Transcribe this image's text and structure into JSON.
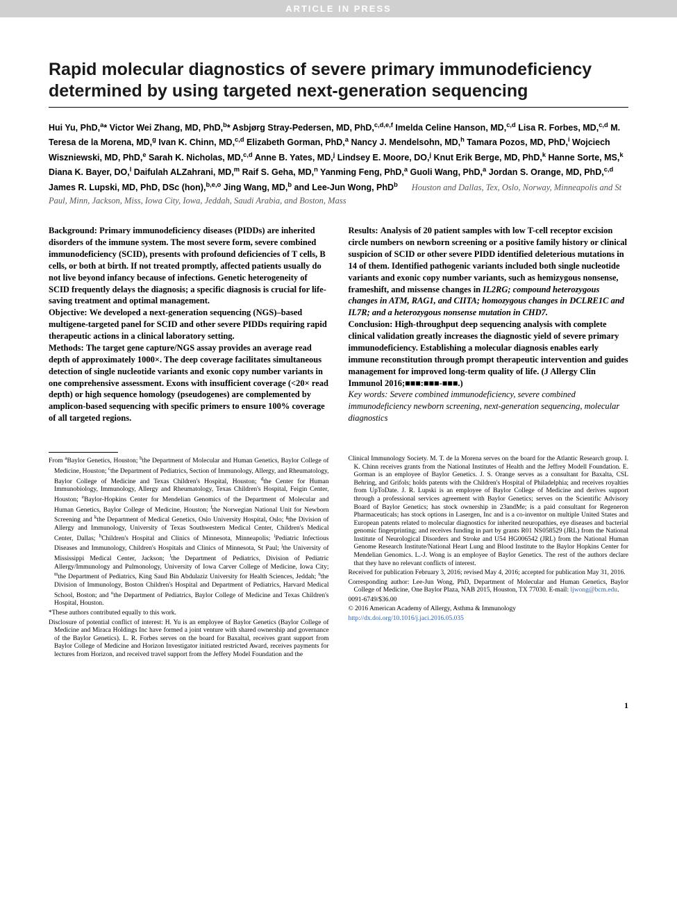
{
  "header_banner": "ARTICLE IN PRESS",
  "title": "Rapid molecular diagnostics of severe primary immunodeficiency determined by using targeted next-generation sequencing",
  "authors_html": "Hui Yu, PhD,<sup>a</sup>* Victor Wei Zhang, MD, PhD,<sup>b</sup>* Asbjørg Stray-Pedersen, MD, PhD,<sup>c,d,e,f</sup> Imelda Celine Hanson, MD,<sup>c,d</sup> Lisa R. Forbes, MD,<sup>c,d</sup> M. Teresa de la Morena, MD,<sup>g</sup> Ivan K. Chinn, MD,<sup>c,d</sup> Elizabeth Gorman, PhD,<sup>a</sup> Nancy J. Mendelsohn, MD,<sup>h</sup> Tamara Pozos, MD, PhD,<sup>i</sup> Wojciech Wiszniewski, MD, PhD,<sup>e</sup> Sarah K. Nicholas, MD,<sup>c,d</sup> Anne B. Yates, MD,<sup>j</sup> Lindsey E. Moore, DO,<sup>j</sup> Knut Erik Berge, MD, PhD,<sup>k</sup> Hanne Sorte, MS,<sup>k</sup> Diana K. Bayer, DO,<sup>l</sup> Daifulah ALZahrani, MD,<sup>m</sup> Raif S. Geha, MD,<sup>n</sup> Yanming Feng, PhD,<sup>a</sup> Guoli Wang, PhD,<sup>a</sup> Jordan S. Orange, MD, PhD,<sup>c,d</sup> James R. Lupski, MD, PhD, DSc (hon),<sup>b,e,o</sup> Jing Wang, MD,<sup>b</sup> and Lee-Jun Wong, PhD<sup>b</sup>",
  "affil_cities": "Houston and Dallas, Tex, Oslo, Norway, Minneapolis and St Paul, Minn, Jackson, Miss, Iowa City, Iowa, Jeddah, Saudi Arabia, and Boston, Mass",
  "abstract": {
    "background_label": "Background:",
    "background": "Primary immunodeficiency diseases (PIDDs) are inherited disorders of the immune system. The most severe form, severe combined immunodeficiency (SCID), presents with profound deficiencies of T cells, B cells, or both at birth. If not treated promptly, affected patients usually do not live beyond infancy because of infections. Genetic heterogeneity of SCID frequently delays the diagnosis; a specific diagnosis is crucial for life-saving treatment and optimal management.",
    "objective_label": "Objective:",
    "objective": "We developed a next-generation sequencing (NGS)–based multigene-targeted panel for SCID and other severe PIDDs requiring rapid therapeutic actions in a clinical laboratory setting.",
    "methods_label": "Methods:",
    "methods": "The target gene capture/NGS assay provides an average read depth of approximately 1000×. The deep coverage facilitates simultaneous detection of single nucleotide variants and exonic copy number variants in one comprehensive assessment. Exons with insufficient coverage (<20× read depth) or high sequence homology (pseudogenes) are complemented by amplicon-based sequencing with specific primers to ensure 100% coverage of all targeted regions.",
    "results_label": "Results:",
    "results_pre": "Analysis of 20 patient samples with low T-cell receptor excision circle numbers on newborn screening or a positive family history or clinical suspicion of SCID or other severe PIDD identified deleterious mutations in 14 of them. Identified pathogenic variants included both single nucleotide variants and exonic copy number variants, such as hemizygous nonsense, frameshift, and missense changes in ",
    "results_genes": "IL2RG; compound heterozygous changes in ATM, RAG1, and CIITA; homozygous changes in DCLRE1C and IL7R; and a heterozygous nonsense mutation in CHD7.",
    "conclusion_label": "Conclusion:",
    "conclusion": "High-throughput deep sequencing analysis with complete clinical validation greatly increases the diagnostic yield of severe primary immunodeficiency. Establishing a molecular diagnosis enables early immune reconstitution through prompt therapeutic intervention and guides management for improved long-term quality of life. (J Allergy Clin Immunol 2016;■■■:■■■-■■■.)",
    "keywords_label": "Key words:",
    "keywords": "Severe combined immunodeficiency, severe combined immunodeficiency newborn screening, next-generation sequencing, molecular diagnostics"
  },
  "footer": {
    "from": "From <sup>a</sup>Baylor Genetics, Houston; <sup>b</sup>the Department of Molecular and Human Genetics, Baylor College of Medicine, Houston; <sup>c</sup>the Department of Pediatrics, Section of Immunology, Allergy, and Rheumatology, Baylor College of Medicine and Texas Children's Hospital, Houston; <sup>d</sup>the Center for Human Immunobiology, Immunology, Allergy and Rheumatology, Texas Children's Hospital, Feigin Center, Houston; <sup>e</sup>Baylor-Hopkins Center for Mendelian Genomics of the Department of Molecular and Human Genetics, Baylor College of Medicine, Houston; <sup>f</sup>the Norwegian National Unit for Newborn Screening and <sup>k</sup>the Department of Medical Genetics, Oslo University Hospital, Oslo; <sup>g</sup>the Division of Allergy and Immunology, University of Texas Southwestern Medical Center, Children's Medical Center, Dallas; <sup>h</sup>Children's Hospital and Clinics of Minnesota, Minneapolis; <sup>i</sup>Pediatric Infectious Diseases and Immunology, Children's Hospitals and Clinics of Minnesota, St Paul; <sup>j</sup>the University of Mississippi Medical Center, Jackson; <sup>l</sup>the Department of Pediatrics, Division of Pediatric Allergy/Immunology and Pulmonology, University of Iowa Carver College of Medicine, Iowa City; <sup>m</sup>the Department of Pediatrics, King Saud Bin Abdulaziz University for Health Sciences, Jeddah; <sup>n</sup>the Division of Immunology, Boston Children's Hospital and Department of Pediatrics, Harvard Medical School, Boston; and <sup>o</sup>the Department of Pediatrics, Baylor College of Medicine and Texas Children's Hospital, Houston.",
    "equal": "*These authors contributed equally to this work.",
    "disclosure_left": "Disclosure of potential conflict of interest: H. Yu is an employee of Baylor Genetics (Baylor College of Medicine and Miraca Holdings Inc have formed a joint venture with shared ownership and governance of the Baylor Genetics). L. R. Forbes serves on the board for Baxaltal, receives grant support from Baylor College of Medicine and Horizon Investigator initiated restricted Award, receives payments for lectures from Horizon, and received travel support from the Jeffery Model Foundation and the",
    "disclosure_right": "Clinical Immunology Society. M. T. de la Morena serves on the board for the Atlantic Research group. I. K. Chinn receives grants from the National Institutes of Health and the Jeffrey Modell Foundation. E. Gorman is an employee of Baylor Genetics. J. S. Orange serves as a consultant for Baxalta, CSL Behring, and Grifols; holds patents with the Children's Hospital of Philadelphia; and receives royalties from UpToDate. J. R. Lupski is an employee of Baylor College of Medicine and derives support through a professional services agreement with Baylor Genetics; serves on the Scientific Advisory Board of Baylor Genetics; has stock ownership in 23andMe; is a paid consultant for Regeneron Pharmaceuticals; has stock options in Lasergen, Inc and is a co-inventor on multiple United States and European patents related to molecular diagnostics for inherited neuropathies, eye diseases and bacterial genomic fingerprinting; and receives funding in part by grants R01 NS058529 (JRL) from the National Institute of Neurological Disorders and Stroke and U54 HG006542 (JRL) from the National Human Genome Research Institute/National Heart Lung and Blood Institute to the Baylor Hopkins Center for Mendelian Genomics. L.-J. Wong is an employee of Baylor Genetics. The rest of the authors declare that they have no relevant conflicts of interest.",
    "received": "Received for publication February 3, 2016; revised May 4, 2016; accepted for publication May 31, 2016.",
    "corresponding": "Corresponding author: Lee-Jun Wong, PhD, Department of Molecular and Human Genetics, Baylor College of Medicine, One Baylor Plaza, NAB 2015, Houston, TX 77030. E-mail: ",
    "email": "ljwong@bcm.edu",
    "issn": "0091-6749/$36.00",
    "copyright": "© 2016 American Academy of Allergy, Asthma & Immunology",
    "doi": "http://dx.doi.org/10.1016/j.jaci.2016.05.035"
  },
  "page_number": "1",
  "colors": {
    "banner_bg": "#d0d0d0",
    "banner_text": "#ffffff",
    "link": "#2a5db0",
    "affil_text": "#555555"
  }
}
